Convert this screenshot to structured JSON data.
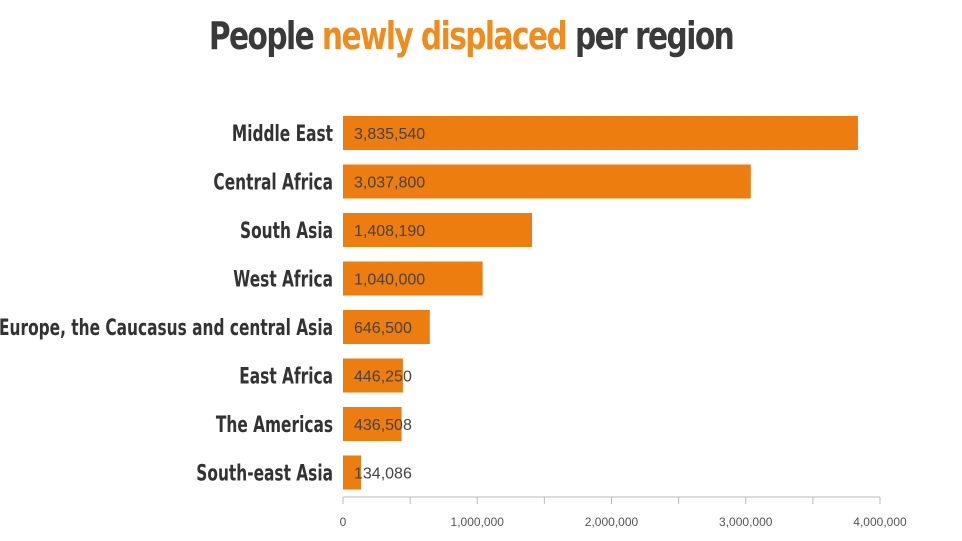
{
  "title": {
    "prefix": "People ",
    "highlight": "newly displaced",
    "suffix": " per region"
  },
  "colors": {
    "bar": "#ed7d0e",
    "title_accent": "#f08c1e",
    "title_text": "#3a3a3a",
    "axis": "#bbbbbb"
  },
  "chart_data": {
    "type": "bar",
    "orientation": "horizontal",
    "categories": [
      "Middle East",
      "Central Africa",
      "South Asia",
      "West Africa",
      "Europe, the Caucasus and central Asia",
      "East Africa",
      "The Americas",
      "South-east Asia"
    ],
    "values": [
      3835540,
      3037800,
      1408190,
      1040000,
      646500,
      446250,
      436508,
      134086
    ],
    "value_labels": [
      "3,835,540",
      "3,037,800",
      "1,408,190",
      "1,040,000",
      "646,500",
      "446,250",
      "436,508",
      "134,086"
    ],
    "xlim": [
      0,
      4000000
    ],
    "x_ticks": [
      0,
      1000000,
      2000000,
      3000000,
      4000000
    ],
    "x_tick_labels": [
      "0",
      "1,000,000",
      "2,000,000",
      "3,000,000",
      "4,000,000"
    ],
    "grid": false,
    "legend": "none"
  }
}
